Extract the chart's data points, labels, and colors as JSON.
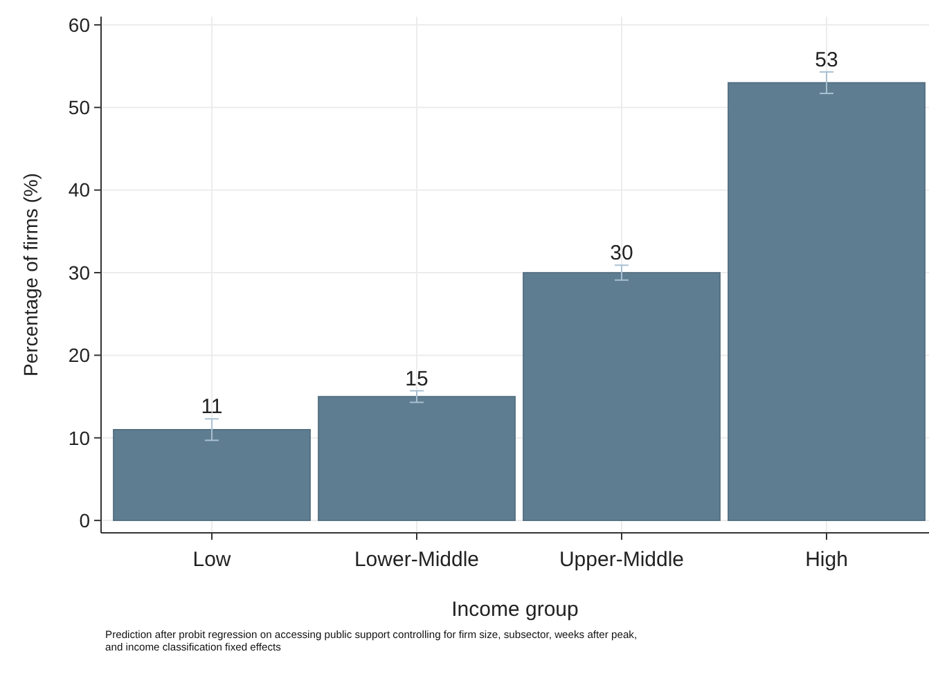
{
  "chart_data": {
    "type": "bar",
    "xlabel": "Income group",
    "ylabel": "Percentage of firms (%)",
    "categories": [
      "Low",
      "Lower-Middle",
      "Upper-Middle",
      "High"
    ],
    "values": [
      11,
      15,
      30,
      53
    ],
    "errors": [
      1.3,
      0.7,
      0.9,
      1.3
    ],
    "color": "#5f7d91",
    "ylim": [
      -1.5,
      61
    ],
    "yticks": [
      0,
      10,
      20,
      30,
      40,
      50,
      60
    ],
    "grid": true,
    "data_labels": true,
    "annotations": [
      "Prediction after probit regression on accessing public support controlling for firm size, subsector, weeks after peak, and income classification fixed effects"
    ]
  }
}
